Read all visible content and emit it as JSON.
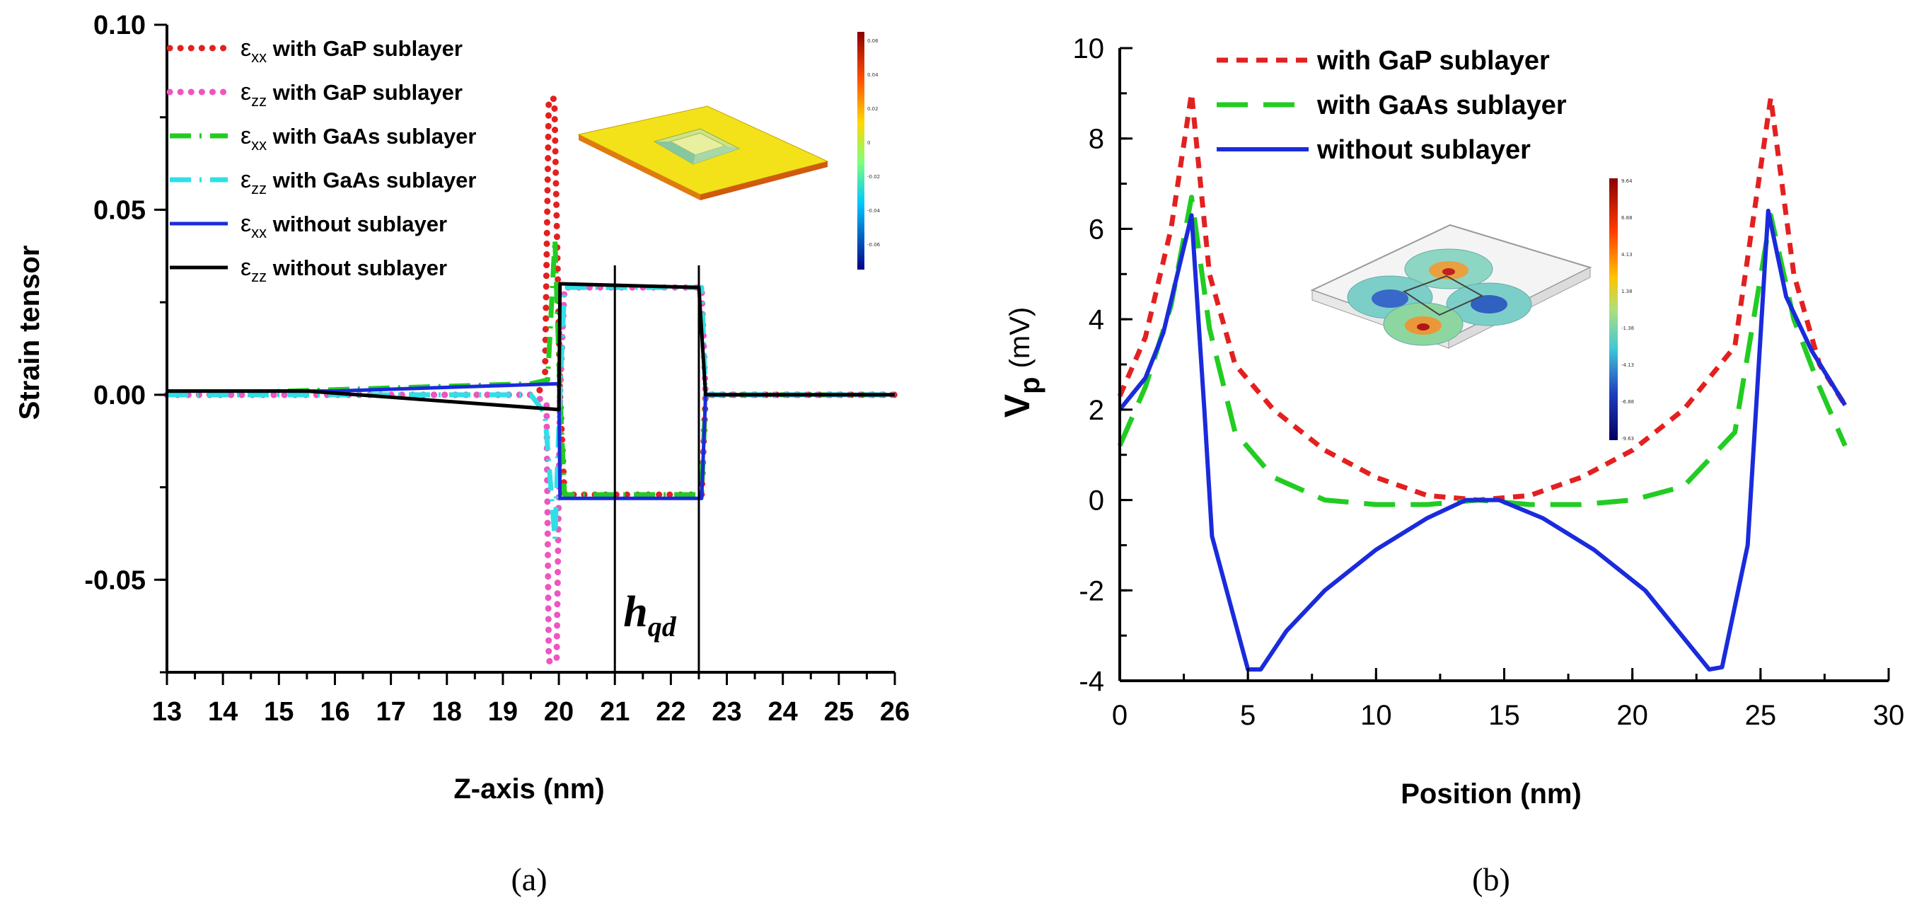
{
  "colors": {
    "red": "#e32020",
    "pink": "#ee55c0",
    "green": "#22cc22",
    "cyan": "#2ee0e6",
    "blue": "#1a2bdc",
    "black": "#000000"
  },
  "chart_data": [
    {
      "type": "line",
      "panel": "(a)",
      "title": "",
      "xlabel": "Z-axis (nm)",
      "ylabel": "Strain tensor",
      "xlim": [
        13,
        26
      ],
      "ylim": [
        -0.075,
        0.1
      ],
      "x_ticks": [
        "13",
        "14",
        "15",
        "16",
        "17",
        "18",
        "19",
        "20",
        "21",
        "22",
        "23",
        "24",
        "25",
        "26"
      ],
      "y_ticks": [
        {
          "value": 0.1,
          "label": "0.10"
        },
        {
          "value": 0.05,
          "label": "0.05"
        },
        {
          "value": 0.0,
          "label": "0.00"
        },
        {
          "value": -0.05,
          "label": "-0.05"
        }
      ],
      "annotation": {
        "text": "h",
        "subscript": "qd",
        "x_from": 21.0,
        "x_to": 22.5
      },
      "legend_position": "top-left",
      "series": [
        {
          "name_sym": "ε",
          "name_sub": "xx",
          "name_rest": " with GaP sublayer",
          "color_key": "red",
          "style": "dotted",
          "points": [
            [
              13,
              0.0
            ],
            [
              16,
              0.0
            ],
            [
              19.5,
              0.0
            ],
            [
              19.75,
              0.002
            ],
            [
              19.82,
              0.08
            ],
            [
              19.92,
              0.08
            ],
            [
              20.02,
              0.0
            ],
            [
              20.1,
              -0.027
            ],
            [
              22.55,
              -0.027
            ],
            [
              22.62,
              0.0
            ],
            [
              26,
              0.0
            ]
          ]
        },
        {
          "name_sym": "ε",
          "name_sub": "zz",
          "name_rest": " with GaP sublayer",
          "color_key": "pink",
          "style": "dotted",
          "points": [
            [
              13,
              0.0
            ],
            [
              19.5,
              0.0
            ],
            [
              19.78,
              -0.002
            ],
            [
              19.82,
              -0.072
            ],
            [
              19.96,
              -0.072
            ],
            [
              20.02,
              0.0
            ],
            [
              20.1,
              0.029
            ],
            [
              22.55,
              0.029
            ],
            [
              22.62,
              0.0
            ],
            [
              26,
              0.0
            ]
          ]
        },
        {
          "name_sym": "ε",
          "name_sub": "xx",
          "name_rest": " with GaAs sublayer",
          "color_key": "green",
          "style": "dashdot",
          "points": [
            [
              13,
              0.0
            ],
            [
              19.5,
              0.003
            ],
            [
              19.8,
              0.004
            ],
            [
              19.93,
              0.042
            ],
            [
              20.02,
              0.0
            ],
            [
              20.1,
              -0.027
            ],
            [
              22.55,
              -0.027
            ],
            [
              22.62,
              0.0
            ],
            [
              26,
              0.0
            ]
          ]
        },
        {
          "name_sym": "ε",
          "name_sub": "zz",
          "name_rest": " with GaAs sublayer",
          "color_key": "cyan",
          "style": "dashdot",
          "points": [
            [
              13,
              0.0
            ],
            [
              19.5,
              0.0
            ],
            [
              19.75,
              -0.005
            ],
            [
              19.93,
              -0.039
            ],
            [
              20.02,
              0.0
            ],
            [
              20.1,
              0.029
            ],
            [
              22.55,
              0.029
            ],
            [
              22.62,
              0.0
            ],
            [
              26,
              0.0
            ]
          ]
        },
        {
          "name_sym": "ε",
          "name_sub": "xx",
          "name_rest": " without sublayer",
          "color_key": "blue",
          "style": "solid",
          "points": [
            [
              13,
              0.001
            ],
            [
              16,
              0.001
            ],
            [
              20.0,
              0.003
            ],
            [
              20.02,
              -0.028
            ],
            [
              22.55,
              -0.028
            ],
            [
              22.62,
              0.0
            ],
            [
              26,
              0.0
            ]
          ]
        },
        {
          "name_sym": "ε",
          "name_sub": "zz",
          "name_rest": " without sublayer",
          "color_key": "black",
          "style": "solid",
          "points": [
            [
              13,
              0.001
            ],
            [
              15.5,
              0.001
            ],
            [
              20.0,
              -0.004
            ],
            [
              20.02,
              0.03
            ],
            [
              22.5,
              0.029
            ],
            [
              22.62,
              0.0
            ],
            [
              26,
              0.0
            ]
          ]
        }
      ],
      "inset_colorbar_labels": [
        "0.06",
        "0.04",
        "0.02",
        "0",
        "-0.02",
        "-0.04",
        "-0.06"
      ]
    },
    {
      "type": "line",
      "panel": "(b)",
      "title": "",
      "xlabel": "Position (nm)",
      "ylabel_main": "V",
      "ylabel_sub": "p",
      "ylabel_unit": "(mV)",
      "xlim": [
        0,
        30
      ],
      "ylim": [
        -4,
        10
      ],
      "x_ticks": [
        "0",
        "5",
        "10",
        "15",
        "20",
        "25",
        "30"
      ],
      "y_ticks": [
        "-4",
        "-2",
        "0",
        "2",
        "4",
        "6",
        "8",
        "10"
      ],
      "legend_position": "top",
      "series": [
        {
          "name": "with GaP sublayer",
          "color_key": "red",
          "style": "dashed",
          "points": [
            [
              0,
              2.3
            ],
            [
              1,
              3.6
            ],
            [
              2,
              6.0
            ],
            [
              2.8,
              9.0
            ],
            [
              3.5,
              5.0
            ],
            [
              4.5,
              3.0
            ],
            [
              6,
              2.0
            ],
            [
              8,
              1.1
            ],
            [
              10,
              0.5
            ],
            [
              12,
              0.1
            ],
            [
              14,
              0.0
            ],
            [
              16,
              0.1
            ],
            [
              18,
              0.5
            ],
            [
              20,
              1.1
            ],
            [
              22,
              2.0
            ],
            [
              24,
              3.4
            ],
            [
              25.4,
              8.9
            ],
            [
              26.3,
              5.0
            ],
            [
              27.3,
              3.0
            ],
            [
              28.3,
              2.1
            ]
          ]
        },
        {
          "name": "with GaAs sublayer",
          "color_key": "green",
          "style": "dashed",
          "points": [
            [
              0,
              1.2
            ],
            [
              1,
              2.5
            ],
            [
              2,
              4.3
            ],
            [
              2.8,
              6.7
            ],
            [
              3.5,
              3.8
            ],
            [
              4.5,
              1.5
            ],
            [
              6,
              0.5
            ],
            [
              8,
              0.0
            ],
            [
              10,
              -0.1
            ],
            [
              12,
              -0.1
            ],
            [
              14,
              0.0
            ],
            [
              16,
              -0.1
            ],
            [
              18,
              -0.1
            ],
            [
              20,
              0.0
            ],
            [
              22,
              0.3
            ],
            [
              24,
              1.5
            ],
            [
              25.4,
              6.3
            ],
            [
              26.3,
              4.0
            ],
            [
              27.3,
              2.5
            ],
            [
              28.3,
              1.2
            ]
          ]
        },
        {
          "name": "without sublayer",
          "color_key": "blue",
          "style": "solid",
          "points": [
            [
              0,
              2.0
            ],
            [
              1,
              2.7
            ],
            [
              1.7,
              3.7
            ],
            [
              2.8,
              6.3
            ],
            [
              3.3,
              2.0
            ],
            [
              3.6,
              -0.8
            ],
            [
              5.0,
              -3.75
            ],
            [
              5.5,
              -3.75
            ],
            [
              6.5,
              -2.9
            ],
            [
              8,
              -2.0
            ],
            [
              10,
              -1.1
            ],
            [
              12,
              -0.4
            ],
            [
              13.5,
              0.0
            ],
            [
              14.8,
              0.0
            ],
            [
              16.5,
              -0.4
            ],
            [
              18.5,
              -1.1
            ],
            [
              20.5,
              -2.0
            ],
            [
              22.5,
              -3.4
            ],
            [
              23.0,
              -3.75
            ],
            [
              23.5,
              -3.7
            ],
            [
              24.5,
              -1.0
            ],
            [
              25.3,
              6.4
            ],
            [
              26,
              4.5
            ],
            [
              27,
              3.3
            ],
            [
              28.3,
              2.1
            ]
          ]
        }
      ],
      "inset_colorbar_labels": [
        "9.64",
        "6.88",
        "4.13",
        "1.38",
        "-1.38",
        "-4.13",
        "-6.88",
        "-9.63"
      ]
    }
  ],
  "captions": {
    "a": "(a)",
    "b": "(b)"
  }
}
